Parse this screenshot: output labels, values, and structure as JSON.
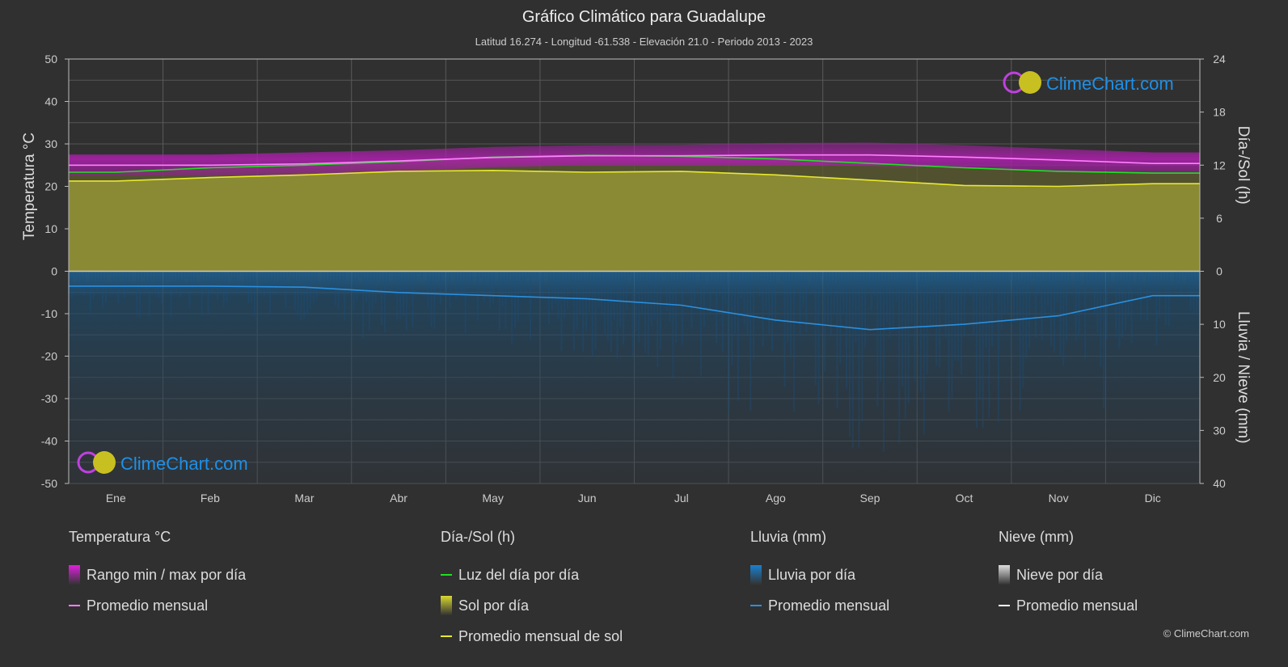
{
  "title": "Gráfico Climático para Guadalupe",
  "subtitle": "Latitud 16.274 - Longitud -61.538 - Elevación 21.0 - Periodo 2013 - 2023",
  "watermark": "ClimeChart.com",
  "copyright": "© ClimeChart.com",
  "chart_data": {
    "type": "area",
    "categories": [
      "Ene",
      "Feb",
      "Mar",
      "Abr",
      "May",
      "Jun",
      "Jul",
      "Ago",
      "Sep",
      "Oct",
      "Nov",
      "Dic"
    ],
    "left_axis": {
      "label": "Temperatura °C",
      "range": [
        -50,
        50
      ],
      "ticks": [
        50,
        40,
        30,
        20,
        10,
        0,
        -10,
        -20,
        -30,
        -40,
        -50
      ]
    },
    "right_axis_top": {
      "label": "Día-/Sol (h)",
      "range": [
        0,
        24
      ],
      "ticks": [
        24,
        18,
        12,
        6,
        0
      ]
    },
    "right_axis_bottom": {
      "label": "Lluvia / Nieve (mm)",
      "range": [
        0,
        40
      ],
      "ticks": [
        10,
        20,
        30,
        40
      ]
    },
    "grid": true,
    "series": [
      {
        "name": "Promedio mensual",
        "group": "temperature",
        "unit": "°C",
        "color": "#ff80ff",
        "values": [
          25.0,
          25.0,
          25.3,
          26.0,
          26.8,
          27.2,
          27.2,
          27.4,
          27.4,
          26.9,
          26.2,
          25.4
        ]
      },
      {
        "name": "Rango min / max por día",
        "group": "temperature",
        "unit": "°C",
        "color": "#d020d0",
        "min": [
          22.5,
          22.5,
          22.8,
          23.5,
          24.5,
          25.0,
          25.0,
          25.0,
          24.8,
          24.3,
          23.6,
          23.0
        ],
        "max": [
          27.5,
          27.5,
          28.0,
          28.5,
          29.3,
          29.7,
          29.8,
          30.2,
          30.3,
          29.7,
          28.8,
          28.0
        ]
      },
      {
        "name": "Luz del día por día",
        "group": "daylight",
        "unit": "h",
        "color": "#20e020",
        "values": [
          11.2,
          11.7,
          12.0,
          12.4,
          12.9,
          13.1,
          13.0,
          12.7,
          12.2,
          11.7,
          11.3,
          11.1
        ]
      },
      {
        "name": "Promedio mensual de sol",
        "group": "sunshine",
        "unit": "h",
        "color": "#e8e830",
        "values": [
          10.2,
          10.6,
          10.9,
          11.3,
          11.4,
          11.2,
          11.3,
          10.9,
          10.3,
          9.7,
          9.6,
          9.9
        ]
      },
      {
        "name": "Promedio mensual",
        "group": "rain",
        "unit": "mm",
        "color": "#2a90e0",
        "values": [
          2.8,
          2.8,
          3.0,
          4.0,
          4.6,
          5.2,
          6.4,
          9.2,
          11.0,
          10.0,
          8.4,
          4.6
        ]
      }
    ]
  },
  "legend": {
    "columns": [
      {
        "title": "Temperatura °C",
        "items": [
          {
            "label": "Rango min / max por día",
            "swatch": "box",
            "color": "#e020e0"
          },
          {
            "label": "Promedio mensual",
            "swatch": "line",
            "color": "#ff80ff"
          }
        ]
      },
      {
        "title": "Día-/Sol (h)",
        "items": [
          {
            "label": "Luz del día por día",
            "swatch": "line",
            "color": "#20e020"
          },
          {
            "label": "Sol por día",
            "swatch": "box",
            "color": "#d8d830"
          },
          {
            "label": "Promedio mensual de sol",
            "swatch": "line",
            "color": "#e8e830"
          }
        ]
      },
      {
        "title": "Lluvia (mm)",
        "items": [
          {
            "label": "Lluvia por día",
            "swatch": "box",
            "color": "#1a80d0"
          },
          {
            "label": "Promedio mensual",
            "swatch": "line",
            "color": "#2a90e0"
          }
        ]
      },
      {
        "title": "Nieve (mm)",
        "items": [
          {
            "label": "Nieve por día",
            "swatch": "box",
            "color": "#dddddd"
          },
          {
            "label": "Promedio mensual",
            "swatch": "line",
            "color": "#ffffff"
          }
        ]
      }
    ]
  }
}
